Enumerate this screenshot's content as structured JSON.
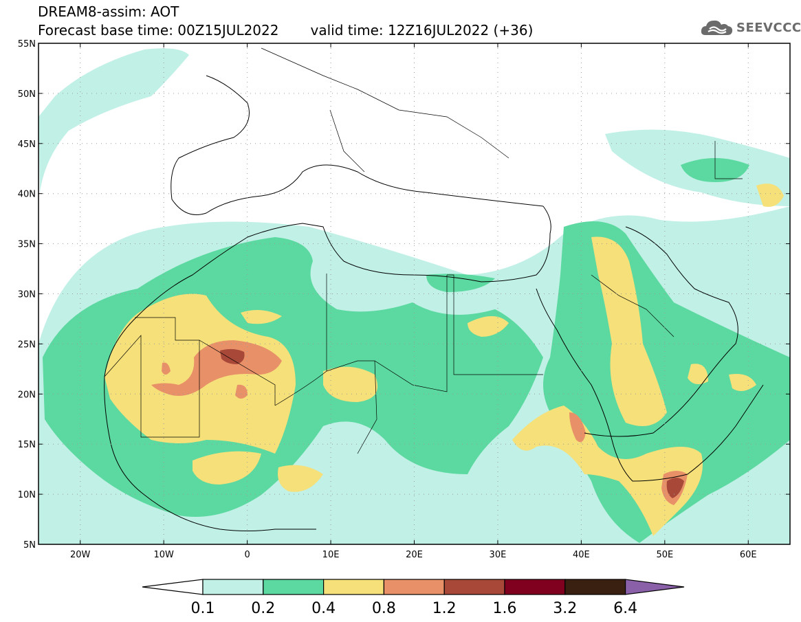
{
  "header": {
    "title": "DREAM8-assim: AOT",
    "base_time": "Forecast base time: 00Z15JUL2022",
    "valid_time": "valid time: 12Z16JUL2022 (+36)"
  },
  "logo": {
    "text": "SEEVCCC",
    "icon": "cloud-icon"
  },
  "map": {
    "lon_range": [
      -25,
      65
    ],
    "lat_range": [
      5,
      55
    ],
    "lon_ticks": [
      {
        "lon": -20,
        "label": "20W"
      },
      {
        "lon": -10,
        "label": "10W"
      },
      {
        "lon": 0,
        "label": "0"
      },
      {
        "lon": 10,
        "label": "10E"
      },
      {
        "lon": 20,
        "label": "20E"
      },
      {
        "lon": 30,
        "label": "30E"
      },
      {
        "lon": 40,
        "label": "40E"
      },
      {
        "lon": 50,
        "label": "50E"
      },
      {
        "lon": 60,
        "label": "60E"
      }
    ],
    "lat_ticks": [
      {
        "lat": 55,
        "label": "55N"
      },
      {
        "lat": 50,
        "label": "50N"
      },
      {
        "lat": 45,
        "label": "45N"
      },
      {
        "lat": 40,
        "label": "40N"
      },
      {
        "lat": 35,
        "label": "35N"
      },
      {
        "lat": 30,
        "label": "30N"
      },
      {
        "lat": 25,
        "label": "25N"
      },
      {
        "lat": 20,
        "label": "20N"
      },
      {
        "lat": 15,
        "label": "15N"
      },
      {
        "lat": 10,
        "label": "10N"
      },
      {
        "lat": 5,
        "label": "5N"
      }
    ],
    "grid": true,
    "grid_style": "dotted"
  },
  "colorbar": {
    "levels": [
      "0.1",
      "0.2",
      "0.4",
      "0.8",
      "1.2",
      "1.6",
      "3.2",
      "6.4"
    ],
    "colors": [
      "#c0f0e6",
      "#5cd9a0",
      "#f5e07a",
      "#e89068",
      "#a84838",
      "#800020",
      "#3a2010",
      "#8a60a8"
    ]
  }
}
